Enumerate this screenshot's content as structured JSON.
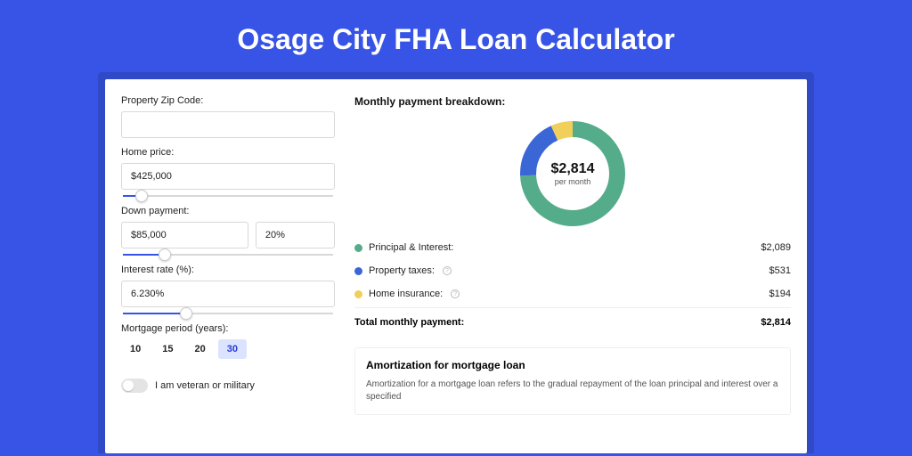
{
  "page": {
    "title": "Osage City FHA Loan Calculator"
  },
  "colors": {
    "page_bg": "#3754e6",
    "outer_card_bg": "#2f49c7",
    "card_bg": "#ffffff",
    "accent": "#3754e6",
    "green": "#55ac8a",
    "blue": "#3a66d6",
    "yellow": "#f0cf5a",
    "selected_bg": "#dbe3ff"
  },
  "form": {
    "zip": {
      "label": "Property Zip Code:",
      "value": ""
    },
    "home_price": {
      "label": "Home price:",
      "value": "$425,000",
      "slider_pct": 9
    },
    "down_payment": {
      "label": "Down payment:",
      "amount": "$85,000",
      "percent": "20%",
      "slider_pct": 20
    },
    "interest_rate": {
      "label": "Interest rate (%):",
      "value": "6.230%",
      "slider_pct": 30
    },
    "period": {
      "label": "Mortgage period (years):",
      "options": [
        "10",
        "15",
        "20",
        "30"
      ],
      "selected": "30"
    },
    "veteran": {
      "label": "I am veteran or military",
      "checked": false
    }
  },
  "breakdown": {
    "title": "Monthly payment breakdown:",
    "donut": {
      "center_amount": "$2,814",
      "center_sub": "per month",
      "slices": [
        {
          "key": "principal_interest",
          "value": 2089,
          "color": "#55ac8a"
        },
        {
          "key": "property_taxes",
          "value": 531,
          "color": "#3a66d6"
        },
        {
          "key": "home_insurance",
          "value": 194,
          "color": "#f0cf5a"
        }
      ],
      "stroke_width": 18,
      "radius": 50
    },
    "rows": [
      {
        "name": "principal-interest",
        "dot_color": "#55ac8a",
        "label": "Principal & Interest:",
        "info": false,
        "amount": "$2,089"
      },
      {
        "name": "property-taxes",
        "dot_color": "#3a66d6",
        "label": "Property taxes:",
        "info": true,
        "amount": "$531"
      },
      {
        "name": "home-insurance",
        "dot_color": "#f0cf5a",
        "label": "Home insurance:",
        "info": true,
        "amount": "$194"
      }
    ],
    "total": {
      "label": "Total monthly payment:",
      "amount": "$2,814"
    }
  },
  "amortization": {
    "title": "Amortization for mortgage loan",
    "text": "Amortization for a mortgage loan refers to the gradual repayment of the loan principal and interest over a specified"
  }
}
